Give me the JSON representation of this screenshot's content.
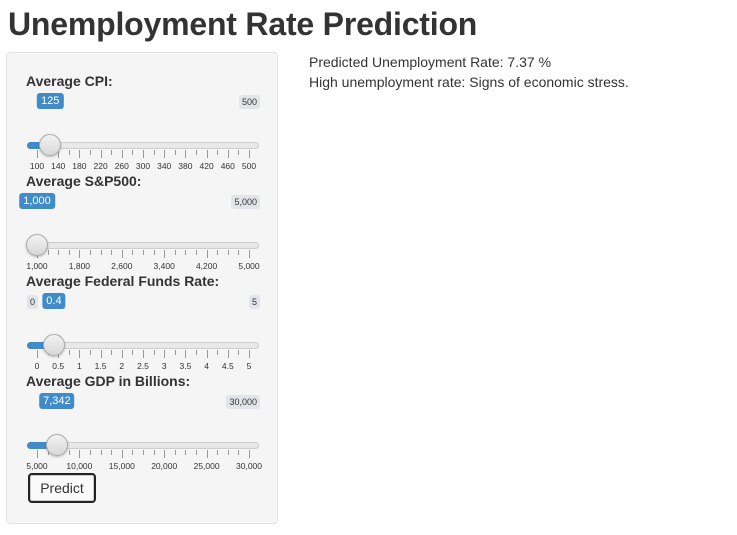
{
  "page": {
    "title": "Unemployment Rate Prediction"
  },
  "sliders": [
    {
      "label": "Average CPI:",
      "min_label": "100",
      "max_label": "500",
      "value_label": "125",
      "min": 100,
      "max": 500,
      "value": 125,
      "show_min_badge": false,
      "ticks": [
        "100",
        "140",
        "180",
        "220",
        "260",
        "300",
        "340",
        "380",
        "420",
        "460",
        "500"
      ],
      "minor_per_major": 1
    },
    {
      "label": "Average S&P500:",
      "min_label": "1,000",
      "max_label": "5,000",
      "value_label": "1,000",
      "min": 1000,
      "max": 5000,
      "value": 1000,
      "show_min_badge": false,
      "ticks": [
        "1,000",
        "1,800",
        "2,600",
        "3,400",
        "4,200",
        "5,000"
      ],
      "minor_per_major": 3
    },
    {
      "label": "Average Federal Funds Rate:",
      "min_label": "0",
      "max_label": "5",
      "value_label": "0.4",
      "min": 0,
      "max": 5,
      "value": 0.4,
      "show_min_badge": true,
      "ticks": [
        "0",
        "0.5",
        "1",
        "1.5",
        "2",
        "2.5",
        "3",
        "3.5",
        "4",
        "4.5",
        "5"
      ],
      "minor_per_major": 1
    },
    {
      "label": "Average GDP in Billions:",
      "min_label": "5,000",
      "max_label": "30,000",
      "value_label": "7,342",
      "min": 5000,
      "max": 30000,
      "value": 7342,
      "show_min_badge": false,
      "ticks": [
        "5,000",
        "10,000",
        "15,000",
        "20,000",
        "25,000",
        "30,000"
      ],
      "minor_per_major": 3
    }
  ],
  "predict_button": {
    "label": "Predict"
  },
  "output": {
    "prediction": "Predicted Unemployment Rate: 7.37 %",
    "interpretation": "High unemployment rate: Signs of economic stress."
  },
  "colors": {
    "accent": "#428bca",
    "badge_bg": "#e1e4e9",
    "panel_bg": "#f5f5f5"
  }
}
